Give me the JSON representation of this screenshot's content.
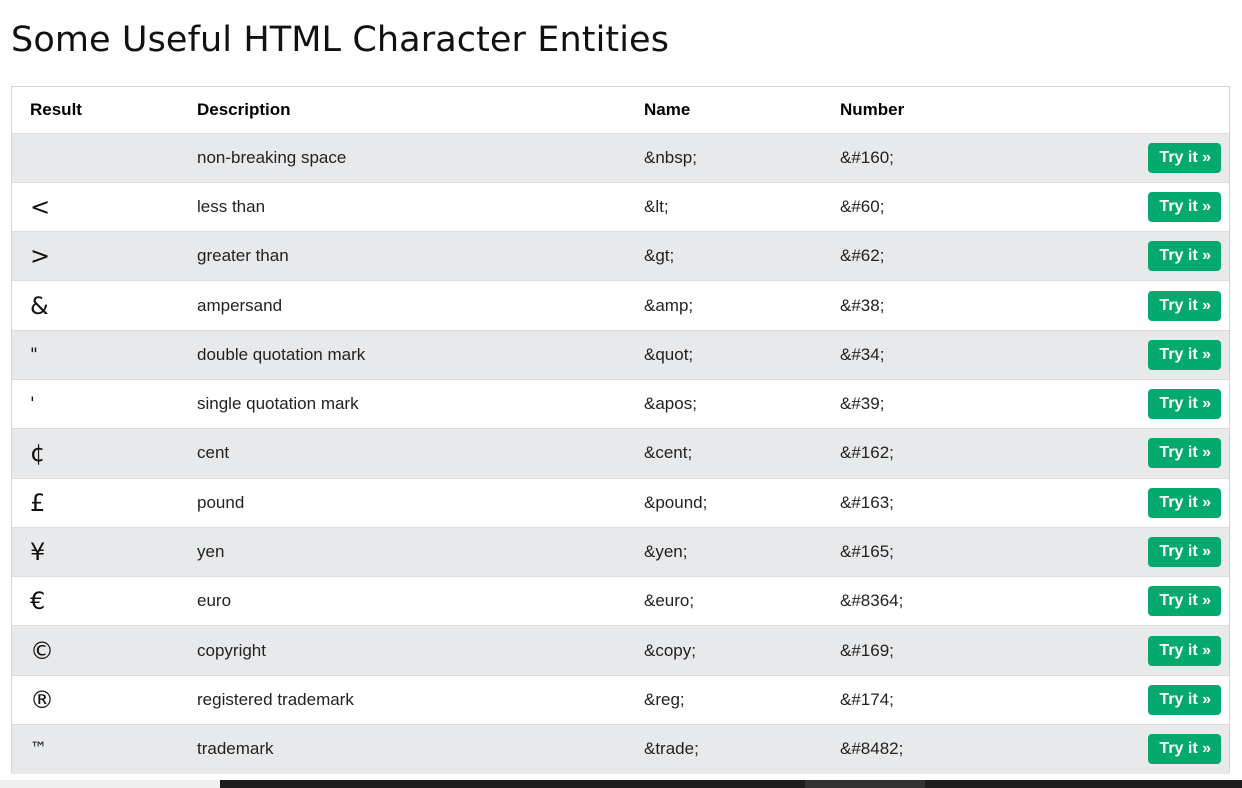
{
  "page": {
    "title": "Some Useful HTML Character Entities"
  },
  "table": {
    "headers": {
      "result": "Result",
      "description": "Description",
      "name": "Name",
      "number": "Number"
    },
    "button_label": "Try it »",
    "rows": [
      {
        "result": " ",
        "description": "non-breaking space",
        "name": "&nbsp;",
        "number": "&#160;"
      },
      {
        "result": "<",
        "description": "less than",
        "name": "&lt;",
        "number": "&#60;"
      },
      {
        "result": ">",
        "description": "greater than",
        "name": "&gt;",
        "number": "&#62;"
      },
      {
        "result": "&",
        "description": "ampersand",
        "name": "&amp;",
        "number": "&#38;"
      },
      {
        "result": "\"",
        "description": "double quotation mark",
        "name": "&quot;",
        "number": "&#34;"
      },
      {
        "result": "'",
        "description": "single quotation mark",
        "name": "&apos;",
        "number": "&#39;"
      },
      {
        "result": "¢",
        "description": "cent",
        "name": "&cent;",
        "number": "&#162;"
      },
      {
        "result": "£",
        "description": "pound",
        "name": "&pound;",
        "number": "&#163;"
      },
      {
        "result": "¥",
        "description": "yen",
        "name": "&yen;",
        "number": "&#165;"
      },
      {
        "result": "€",
        "description": "euro",
        "name": "&euro;",
        "number": "&#8364;"
      },
      {
        "result": "©",
        "description": "copyright",
        "name": "&copy;",
        "number": "&#169;"
      },
      {
        "result": "®",
        "description": "registered trademark",
        "name": "&reg;",
        "number": "&#174;"
      },
      {
        "result": "™",
        "description": "trademark",
        "name": "&trade;",
        "number": "&#8482;"
      }
    ]
  },
  "colors": {
    "button_bg": "#04aa6d",
    "stripe_bg": "#e7e9eb"
  }
}
